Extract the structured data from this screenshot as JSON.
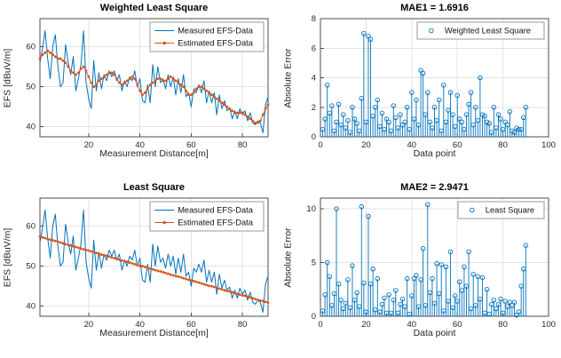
{
  "figure": {
    "background": "#ffffff",
    "accent_blue": "#0072BD",
    "accent_orange": "#D95319"
  },
  "chart_data": [
    {
      "type": "line",
      "title": "Weighted Least Square",
      "xlabel": "Measurement Distance[m]",
      "ylabel": "EFS [dBuV/m]",
      "xlim": [
        1,
        90
      ],
      "ylim": [
        37.5,
        67
      ],
      "xticks": [
        20,
        40,
        60,
        80
      ],
      "yticks": [
        40,
        50,
        60
      ],
      "grid": true,
      "legend_loc": "upper right",
      "x_start": 1,
      "series": [
        {
          "name": "Measured EFS-Data",
          "color": "#0072BD",
          "style": "line",
          "values": [
            56,
            59.5,
            64,
            57,
            52,
            60,
            63,
            55,
            50,
            51,
            60.5,
            56,
            53,
            57.5,
            49,
            52,
            55.5,
            64,
            51,
            47,
            44.5,
            56.5,
            49,
            53.5,
            49.5,
            53,
            51.5,
            54,
            52.5,
            54,
            51.5,
            53,
            49,
            51.5,
            50,
            52.5,
            51.5,
            54,
            50,
            52,
            46.5,
            46,
            50.5,
            46,
            55.5,
            50,
            55,
            51,
            52,
            49.5,
            53,
            50,
            52.5,
            48,
            52,
            48.5,
            53,
            47.5,
            48.5,
            45,
            49.5,
            48.5,
            50.5,
            48.5,
            51.5,
            46,
            49,
            46,
            48.5,
            43,
            48,
            44.5,
            46.5,
            44,
            44.8,
            42,
            44,
            42,
            44.5,
            43,
            44,
            41.5,
            43.5,
            41,
            40.5,
            41.5,
            41,
            38.5,
            45.5,
            47.5
          ]
        },
        {
          "name": "Estimated EFS-Data",
          "color": "#D95319",
          "style": "line-dot",
          "values": [
            57,
            58,
            58.5,
            59,
            58.5,
            58,
            57.5,
            57,
            57,
            56.5,
            56,
            55,
            54,
            53.5,
            53,
            53.5,
            54.5,
            55,
            54,
            52.5,
            51,
            50,
            50.5,
            51.5,
            52,
            52.5,
            53,
            53.5,
            53.5,
            53,
            52,
            51,
            50.5,
            51,
            51.5,
            52,
            52.5,
            52,
            50.5,
            49,
            48,
            48.5,
            49.5,
            50.5,
            51,
            51.5,
            52,
            52,
            51.5,
            51.5,
            52,
            52.5,
            52,
            51.5,
            51,
            50.5,
            50,
            49,
            48,
            48,
            48.5,
            49.5,
            50,
            50,
            49.5,
            49,
            48.5,
            48,
            47.5,
            47,
            46.5,
            46,
            45.5,
            45,
            44.5,
            44,
            43.5,
            43.5,
            43.5,
            43.5,
            43,
            42.5,
            42,
            41.5,
            41,
            41,
            41.5,
            43,
            44.5,
            45.5
          ]
        }
      ]
    },
    {
      "type": "stem",
      "title": "MAE1 = 1.6916",
      "xlabel": "Data point",
      "ylabel": "Absolute Error",
      "xlim": [
        0,
        100
      ],
      "ylim": [
        0,
        8
      ],
      "xticks": [
        0,
        20,
        40,
        60,
        80,
        100
      ],
      "yticks": [
        0,
        2,
        4,
        6,
        8
      ],
      "grid": true,
      "legend_loc": "upper right",
      "x_start": 1,
      "series": [
        {
          "name": "Weighted Least Square",
          "color": "#0072BD",
          "style": "stem",
          "values": [
            0.5,
            1.2,
            3.5,
            1.6,
            2.1,
            0.4,
            1.0,
            2.2,
            0.8,
            1.5,
            0.6,
            1.1,
            0.3,
            2.0,
            1.2,
            0.9,
            0.4,
            2.6,
            7.0,
            1.0,
            6.8,
            6.6,
            1.4,
            2.0,
            2.5,
            0.7,
            1.6,
            0.5,
            1.2,
            1.0,
            0.4,
            2.1,
            1.3,
            0.6,
            1.5,
            0.8,
            1.0,
            2.0,
            0.5,
            3.0,
            1.2,
            2.5,
            0.8,
            4.5,
            4.3,
            1.5,
            3.0,
            1.0,
            0.6,
            2.0,
            1.1,
            2.5,
            0.4,
            3.5,
            1.0,
            1.8,
            3.0,
            1.5,
            0.7,
            2.8,
            1.2,
            1.0,
            0.5,
            1.5,
            2.2,
            3.0,
            0.8,
            2.0,
            1.1,
            4.0,
            1.5,
            1.4,
            1.0,
            0.9,
            0.3,
            2.0,
            0.6,
            1.5,
            1.2,
            0.5,
            1.0,
            0.8,
            1.7,
            0.4,
            0.3,
            0.6,
            0.5,
            0.5,
            1.3,
            2.0
          ]
        }
      ]
    },
    {
      "type": "line",
      "title": "Least Square",
      "xlabel": "Measurement Distance[m]",
      "ylabel": "EFS [dBuV/m]",
      "xlim": [
        1,
        90
      ],
      "ylim": [
        37.5,
        67
      ],
      "xticks": [
        20,
        40,
        60,
        80
      ],
      "yticks": [
        40,
        50,
        60
      ],
      "grid": true,
      "legend_loc": "upper right",
      "x_start": 1,
      "series": [
        {
          "name": "Measured EFS-Data",
          "color": "#0072BD",
          "style": "line",
          "values": [
            56,
            59.5,
            64,
            57,
            52,
            60,
            63,
            55,
            50,
            51,
            60.5,
            56,
            53,
            57.5,
            49,
            52,
            55.5,
            64,
            51,
            47,
            44.5,
            56.5,
            49,
            53.5,
            49.5,
            53,
            51.5,
            54,
            52.5,
            54,
            51.5,
            53,
            49,
            51.5,
            50,
            52.5,
            51.5,
            54,
            50,
            52,
            46.5,
            46,
            50.5,
            46,
            55.5,
            50,
            55,
            51,
            52,
            49.5,
            53,
            50,
            52.5,
            48,
            52,
            48.5,
            53,
            47.5,
            48.5,
            45,
            49.5,
            48.5,
            50.5,
            48.5,
            51.5,
            46,
            49,
            46,
            48.5,
            43,
            48,
            44.5,
            46.5,
            44,
            44.8,
            42,
            44,
            42,
            44.5,
            43,
            44,
            41.5,
            43.5,
            41,
            40.5,
            41.5,
            41,
            38.5,
            45.5,
            47.5
          ]
        },
        {
          "name": "Estimated EFS-Data",
          "color": "#D95319",
          "style": "line-dot",
          "values": [
            57.4,
            57.2,
            57.0,
            56.8,
            56.6,
            56.5,
            56.3,
            56.1,
            55.9,
            55.7,
            55.5,
            55.3,
            55.2,
            55.0,
            54.8,
            54.6,
            54.4,
            54.2,
            54.0,
            53.9,
            53.7,
            53.5,
            53.3,
            53.1,
            52.9,
            52.7,
            52.6,
            52.4,
            52.2,
            52.0,
            51.8,
            51.6,
            51.4,
            51.3,
            51.1,
            50.9,
            50.7,
            50.5,
            50.3,
            50.1,
            50.0,
            49.8,
            49.6,
            49.4,
            49.2,
            49.0,
            48.8,
            48.7,
            48.5,
            48.3,
            48.1,
            47.9,
            47.7,
            47.5,
            47.4,
            47.2,
            47.0,
            46.8,
            46.6,
            46.4,
            46.3,
            46.1,
            45.9,
            45.7,
            45.5,
            45.3,
            45.1,
            45.0,
            44.8,
            44.6,
            44.4,
            44.2,
            44.0,
            43.8,
            43.7,
            43.5,
            43.3,
            43.1,
            42.9,
            42.7,
            42.6,
            42.4,
            42.2,
            42.0,
            41.8,
            41.6,
            41.4,
            41.3,
            41.1,
            40.9
          ]
        }
      ]
    },
    {
      "type": "stem",
      "title": "MAE2 = 2.9471",
      "xlabel": "Data point",
      "ylabel": "Absolute Error",
      "xlim": [
        0,
        100
      ],
      "ylim": [
        0,
        11
      ],
      "xticks": [
        0,
        20,
        40,
        60,
        80,
        100
      ],
      "yticks": [
        0,
        5,
        10
      ],
      "grid": true,
      "legend_loc": "upper right",
      "x_start": 1,
      "series": [
        {
          "name": "Least Square",
          "color": "#0072BD",
          "style": "stem",
          "values": [
            0.5,
            2.0,
            5.0,
            3.7,
            1.0,
            2.1,
            10.0,
            3.0,
            1.5,
            0.7,
            1.2,
            3.4,
            0.8,
            4.7,
            1.5,
            2.2,
            0.9,
            10.2,
            3.1,
            0.4,
            9.3,
            3.0,
            4.4,
            0.6,
            3.5,
            0.4,
            1.1,
            1.7,
            0.3,
            2.0,
            0.3,
            1.5,
            2.4,
            0.3,
            1.1,
            1.6,
            0.9,
            3.5,
            0.2,
            1.9,
            3.5,
            3.8,
            0.9,
            3.4,
            6.3,
            1.0,
            10.4,
            2.2,
            3.5,
            1.2,
            4.9,
            2.1,
            4.8,
            0.5,
            4.6,
            1.4,
            6.0,
            0.8,
            1.9,
            1.4,
            3.2,
            2.4,
            4.6,
            2.8,
            6.0,
            0.7,
            3.9,
            1.0,
            3.7,
            1.6,
            3.6,
            0.3,
            2.5,
            0.2,
            1.1,
            1.5,
            0.7,
            1.1,
            1.6,
            0.3,
            1.4,
            0.9,
            1.3,
            1.0,
            1.3,
            0.1,
            0.4,
            2.8,
            4.4,
            6.6
          ]
        }
      ]
    }
  ]
}
